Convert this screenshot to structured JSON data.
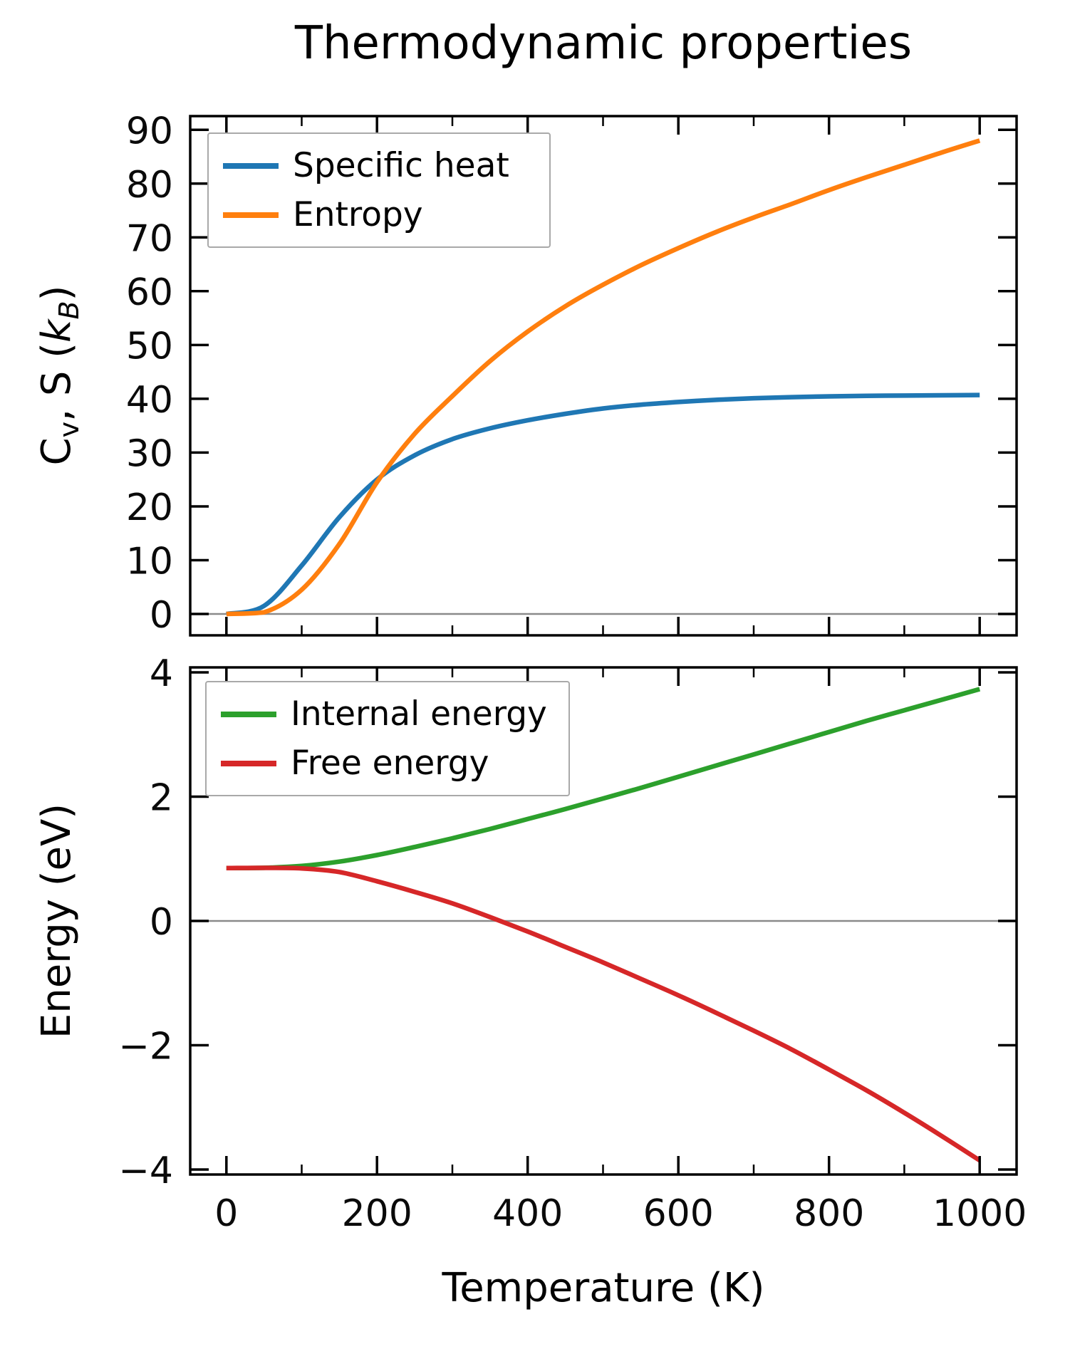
{
  "figure": {
    "title": "Thermodynamic properties",
    "background": "#ffffff",
    "zero_line_color": "#8a8a8a",
    "spine_color": "#000000"
  },
  "top_ylabel_parts": {
    "c": "C",
    "v": "v",
    "mid": ", S (",
    "k": "k",
    "b": "B",
    "close": ")"
  },
  "chart_data": [
    {
      "type": "line",
      "panel": "top",
      "ylabel": "Cv, S (kB)",
      "xlabel": "",
      "x": [
        0,
        50,
        100,
        150,
        200,
        250,
        300,
        350,
        400,
        450,
        500,
        550,
        600,
        650,
        700,
        750,
        800,
        850,
        900,
        950,
        1000
      ],
      "series": [
        {
          "name": "Specific heat",
          "color": "#1f77b4",
          "values": [
            0,
            1.5,
            9.0,
            18.0,
            25.0,
            29.5,
            32.5,
            34.5,
            36.0,
            37.2,
            38.2,
            38.9,
            39.4,
            39.8,
            40.1,
            40.3,
            40.45,
            40.55,
            40.6,
            40.65,
            40.7
          ]
        },
        {
          "name": "Entropy",
          "color": "#ff7f0e",
          "values": [
            0,
            0.3,
            4.5,
            13.0,
            24.5,
            33.5,
            40.5,
            47.0,
            52.5,
            57.2,
            61.2,
            64.8,
            68.0,
            71.0,
            73.7,
            76.2,
            78.8,
            81.2,
            83.5,
            85.8,
            88.0
          ]
        }
      ],
      "xlim": [
        -48,
        1049
      ],
      "ylim": [
        -3.97,
        92.55
      ],
      "xticks": {
        "values": [
          0,
          200,
          400,
          600,
          800,
          1000
        ],
        "labels": [
          "0",
          "200",
          "400",
          "600",
          "800",
          "1000"
        ]
      },
      "x_minor_ticks": [
        100,
        300,
        500,
        700,
        900
      ],
      "yticks": {
        "values": [
          0,
          10,
          20,
          30,
          40,
          50,
          60,
          70,
          80,
          90
        ],
        "labels": [
          "0",
          "10",
          "20",
          "30",
          "40",
          "50",
          "60",
          "70",
          "80",
          "90"
        ]
      },
      "show_x_tick_labels": false,
      "zero_line": true,
      "legend_position": "upper left",
      "grid": false
    },
    {
      "type": "line",
      "panel": "bottom",
      "ylabel": "Energy (eV)",
      "xlabel": "Temperature (K)",
      "x": [
        0,
        50,
        100,
        150,
        200,
        250,
        300,
        350,
        400,
        450,
        500,
        550,
        600,
        650,
        700,
        750,
        800,
        850,
        900,
        950,
        1000
      ],
      "series": [
        {
          "name": "Internal energy",
          "color": "#2ca02c",
          "values": [
            0.85,
            0.855,
            0.885,
            0.955,
            1.06,
            1.19,
            1.33,
            1.48,
            1.64,
            1.8,
            1.97,
            2.14,
            2.32,
            2.5,
            2.68,
            2.86,
            3.04,
            3.22,
            3.39,
            3.56,
            3.73
          ]
        },
        {
          "name": "Free energy",
          "color": "#d62728",
          "values": [
            0.85,
            0.854,
            0.846,
            0.787,
            0.638,
            0.468,
            0.283,
            0.062,
            -0.17,
            -0.418,
            -0.667,
            -0.931,
            -1.196,
            -1.477,
            -1.766,
            -2.065,
            -2.392,
            -2.728,
            -3.086,
            -3.463,
            -3.853
          ]
        }
      ],
      "xlim": [
        -48,
        1049
      ],
      "ylim": [
        -4.08,
        4.08
      ],
      "xticks": {
        "values": [
          0,
          200,
          400,
          600,
          800,
          1000
        ],
        "labels": [
          "0",
          "200",
          "400",
          "600",
          "800",
          "1000"
        ]
      },
      "x_minor_ticks": [
        100,
        300,
        500,
        700,
        900
      ],
      "yticks": {
        "values": [
          -4,
          -2,
          0,
          2,
          4
        ],
        "labels": [
          "−4",
          "−2",
          "0",
          "2",
          "4"
        ]
      },
      "show_x_tick_labels": true,
      "zero_line": true,
      "legend_position": "upper left",
      "grid": false
    }
  ]
}
